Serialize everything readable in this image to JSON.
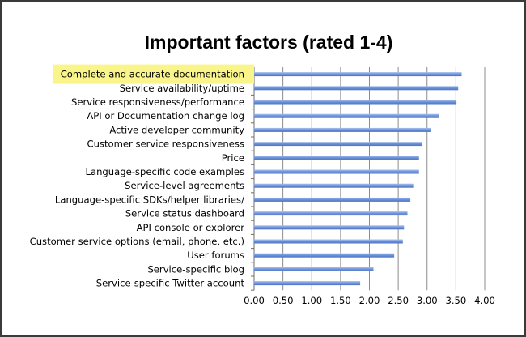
{
  "chart_data": {
    "type": "bar",
    "orientation": "horizontal",
    "title": "Important factors (rated 1-4)",
    "xlabel": "",
    "ylabel": "",
    "categories": [
      "Complete and accurate documentation",
      "Service availability/uptime",
      "Service responsiveness/performance",
      "API or Documentation change log",
      "Active developer community",
      "Customer service responsiveness",
      "Price",
      "Language-specific code examples",
      "Service-level agreements",
      "Language-specific SDKs/helper libraries/",
      "Service status dashboard",
      "API console or explorer",
      "Customer service options (email, phone, etc.)",
      "User forums",
      "Service-specific blog",
      "Service-specific Twitter account"
    ],
    "values": [
      3.6,
      3.54,
      3.51,
      3.2,
      3.06,
      2.92,
      2.86,
      2.86,
      2.76,
      2.71,
      2.66,
      2.6,
      2.58,
      2.43,
      2.07,
      1.84
    ],
    "xlim": [
      0,
      4
    ],
    "xticks": [
      "0.00",
      "0.50",
      "1.00",
      "1.50",
      "2.00",
      "2.50",
      "3.00",
      "3.50",
      "4.00"
    ],
    "grid": "vertical",
    "legend": "none",
    "highlighted_category": "Complete and accurate documentation",
    "colors": {
      "bar": "#6f94dc",
      "highlight": "#faf58a",
      "grid": "#8c8c8c"
    }
  }
}
